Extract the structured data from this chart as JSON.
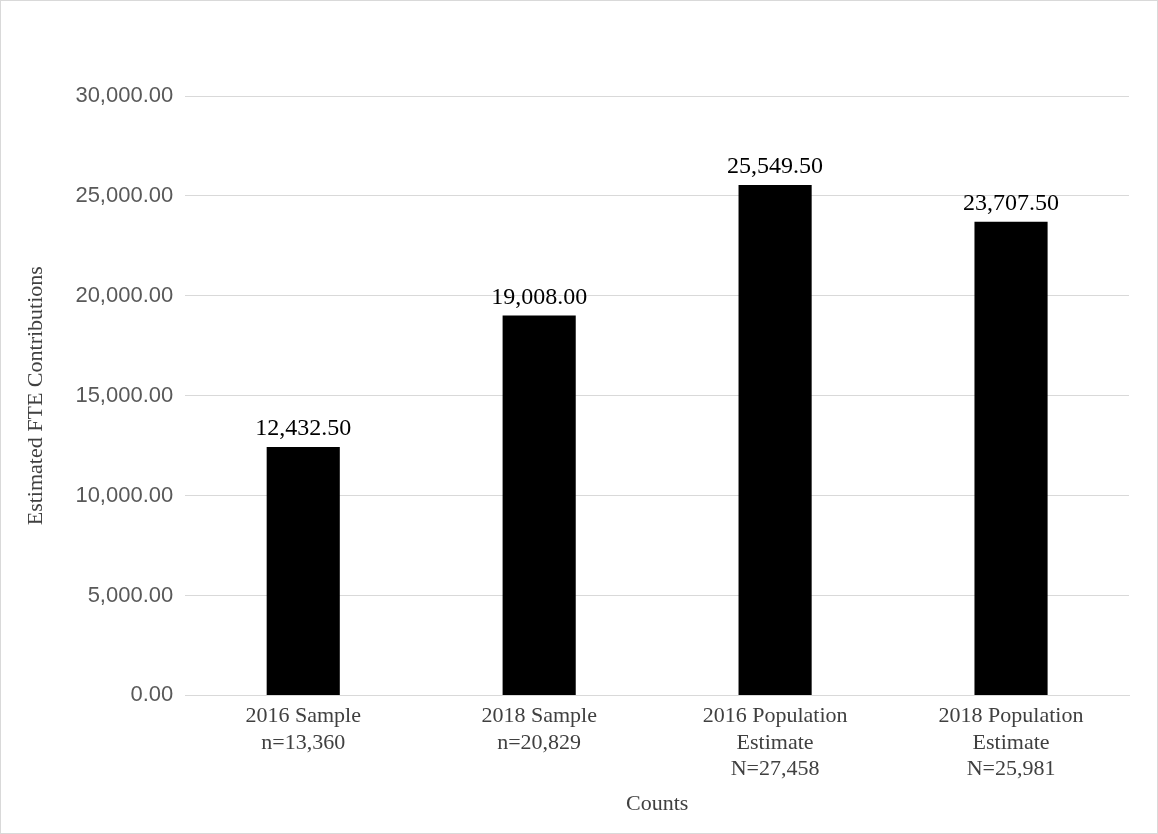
{
  "chart_data": {
    "type": "bar",
    "xlabel": "Counts",
    "ylabel": "Estimated FTE Contributions",
    "categories": [
      "2016 Sample\nn=13,360",
      "2018 Sample\nn=20,829",
      "2016 Population\nEstimate\nN=27,458",
      "2018 Population\nEstimate\nN=25,981"
    ],
    "values": [
      12432.5,
      19008,
      25549.5,
      23707.5
    ],
    "value_labels": [
      "12,432.50",
      "19,008.00",
      "25,549.50",
      "23,707.50"
    ],
    "color": "#000000",
    "ylim": [
      0,
      30000
    ],
    "yticks": [
      {
        "value": 0,
        "label": "0.00"
      },
      {
        "value": 5000,
        "label": "5,000.00"
      },
      {
        "value": 10000,
        "label": "10,000.00"
      },
      {
        "value": 15000,
        "label": "15,000.00"
      },
      {
        "value": 20000,
        "label": "20,000.00"
      },
      {
        "value": 25000,
        "label": "25,000.00"
      },
      {
        "value": 30000,
        "label": "30,000.00"
      }
    ],
    "grid": "y"
  }
}
